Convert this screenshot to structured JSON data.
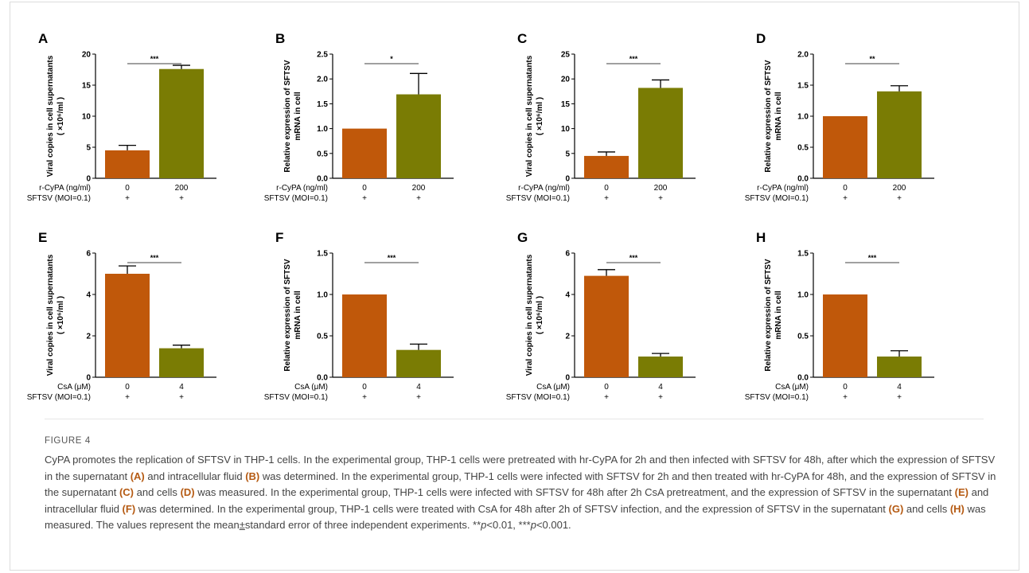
{
  "colors": {
    "orange_bar": "#c0580a",
    "olive_bar": "#7a7c04",
    "border": "#dcdcdc",
    "caption_text": "#444444",
    "caption_ref": "#b55a12"
  },
  "figure_label": "FIGURE 4",
  "caption": {
    "intro": "CyPA promotes the replication of SFTSV in THP-1 cells. In the experimental group, THP-1 cells were pretreated with hr-CyPA for 2h and then infected with SFTSV for 48h, after which the expression of SFTSV in the supernatant ",
    "ref_a": "(A)",
    "t1": " and intracellular fluid ",
    "ref_b": "(B)",
    "t2": " was determined. In the experimental group, THP-1 cells were infected with SFTSV for 2h and then treated with hr-CyPA for 48h, and the expression of SFTSV in the supernatant ",
    "ref_c": "(C)",
    "t3": " and cells ",
    "ref_d": "(D)",
    "t4": " was measured. In the experimental group, THP-1 cells were infected with SFTSV for 48h after 2h CsA pretreatment, and the expression of SFTSV in the supernatant ",
    "ref_e": "(E)",
    "t5": " and intracellular fluid ",
    "ref_f": "(F)",
    "t6": " was determined. In the experimental group, THP-1 cells were treated with CsA for 48h after 2h of SFTSV infection, and the expression of SFTSV in the supernatant ",
    "ref_g": "(G)",
    "t7": " and cells ",
    "ref_h": "(H)",
    "t8": " was measured. The values represent the mean",
    "pm": "±",
    "t9": "standard error of three independent experiments. **",
    "p1": "p",
    "t10": "<0.01, ***",
    "p2": "p",
    "t11": "<0.001."
  },
  "chart_data": [
    {
      "panel": "A",
      "type": "bar",
      "ylabel": [
        "Viral copies in cell supernatants",
        "( ×10⁶/ml )"
      ],
      "ylim": [
        0,
        20
      ],
      "yticks": [
        "0",
        "5",
        "10",
        "15",
        "20"
      ],
      "treatment_label": "r-CyPA (ng/ml)",
      "treatment_values": [
        "0",
        "200"
      ],
      "infection_label": "SFTSV (MOI=0.1)",
      "infection_values": [
        "+",
        "+"
      ],
      "values": [
        4.5,
        17.6
      ],
      "errors": [
        0.8,
        0.6
      ],
      "significance": "***"
    },
    {
      "panel": "B",
      "type": "bar",
      "ylabel": [
        "Relative expression of SFTSV",
        "mRNA in cell"
      ],
      "ylim": [
        0,
        2.5
      ],
      "yticks": [
        "0.0",
        "0.5",
        "1.0",
        "1.5",
        "2.0",
        "2.5"
      ],
      "treatment_label": "r-CyPA (ng/ml)",
      "treatment_values": [
        "0",
        "200"
      ],
      "infection_label": "SFTSV (MOI=0.1)",
      "infection_values": [
        "+",
        "+"
      ],
      "values": [
        1.0,
        1.69
      ],
      "errors": [
        0.0,
        0.42
      ],
      "significance": "*"
    },
    {
      "panel": "C",
      "type": "bar",
      "ylabel": [
        "Viral copies in cell supernatants",
        "( ×10⁶/ml )"
      ],
      "ylim": [
        0,
        25
      ],
      "yticks": [
        "0",
        "5",
        "10",
        "15",
        "20",
        "25"
      ],
      "treatment_label": "r-CyPA (ng/ml)",
      "treatment_values": [
        "0",
        "200"
      ],
      "infection_label": "SFTSV (MOI=0.1)",
      "infection_values": [
        "+",
        "+"
      ],
      "values": [
        4.5,
        18.2
      ],
      "errors": [
        0.8,
        1.6
      ],
      "significance": "***"
    },
    {
      "panel": "D",
      "type": "bar",
      "ylabel": [
        "Relative expression of SFTSV",
        "mRNA in cell"
      ],
      "ylim": [
        0,
        2.0
      ],
      "yticks": [
        "0.0",
        "0.5",
        "1.0",
        "1.5",
        "2.0"
      ],
      "treatment_label": "r-CyPA (ng/ml)",
      "treatment_values": [
        "0",
        "200"
      ],
      "infection_label": "SFTSV (MOI=0.1)",
      "infection_values": [
        "+",
        "+"
      ],
      "values": [
        1.0,
        1.4
      ],
      "errors": [
        0.0,
        0.09
      ],
      "significance": "**"
    },
    {
      "panel": "E",
      "type": "bar",
      "ylabel": [
        "Viral copies in cell supernatants",
        "( ×10⁶/ml )"
      ],
      "ylim": [
        0,
        6
      ],
      "yticks": [
        "0",
        "2",
        "4",
        "6"
      ],
      "treatment_label": "CsA (μM)",
      "treatment_values": [
        "0",
        "4"
      ],
      "infection_label": "SFTSV (MOI=0.1)",
      "infection_values": [
        "+",
        "+"
      ],
      "values": [
        5.0,
        1.4
      ],
      "errors": [
        0.38,
        0.15
      ],
      "significance": "***"
    },
    {
      "panel": "F",
      "type": "bar",
      "ylabel": [
        "Relative expression of SFTSV",
        "mRNA in cell"
      ],
      "ylim": [
        0,
        1.5
      ],
      "yticks": [
        "0.0",
        "0.5",
        "1.0",
        "1.5"
      ],
      "treatment_label": "CsA (μM)",
      "treatment_values": [
        "0",
        "4"
      ],
      "infection_label": "SFTSV (MOI=0.1)",
      "infection_values": [
        "+",
        "+"
      ],
      "values": [
        1.0,
        0.33
      ],
      "errors": [
        0.0,
        0.07
      ],
      "significance": "***"
    },
    {
      "panel": "G",
      "type": "bar",
      "ylabel": [
        "Viral copies in cell supernatants",
        "( ×10⁶/ml )"
      ],
      "ylim": [
        0,
        6
      ],
      "yticks": [
        "0",
        "2",
        "4",
        "6"
      ],
      "treatment_label": "CsA (μM)",
      "treatment_values": [
        "0",
        "4"
      ],
      "infection_label": "SFTSV (MOI=0.1)",
      "infection_values": [
        "+",
        "+"
      ],
      "values": [
        4.9,
        1.0
      ],
      "errors": [
        0.3,
        0.15
      ],
      "significance": "***"
    },
    {
      "panel": "H",
      "type": "bar",
      "ylabel": [
        "Relative expression of SFTSV",
        "mRNA in cell"
      ],
      "ylim": [
        0,
        1.5
      ],
      "yticks": [
        "0.0",
        "0.5",
        "1.0",
        "1.5"
      ],
      "treatment_label": "CsA (μM)",
      "treatment_values": [
        "0",
        "4"
      ],
      "infection_label": "SFTSV (MOI=0.1)",
      "infection_values": [
        "+",
        "+"
      ],
      "values": [
        1.0,
        0.25
      ],
      "errors": [
        0.0,
        0.07
      ],
      "significance": "***"
    }
  ]
}
